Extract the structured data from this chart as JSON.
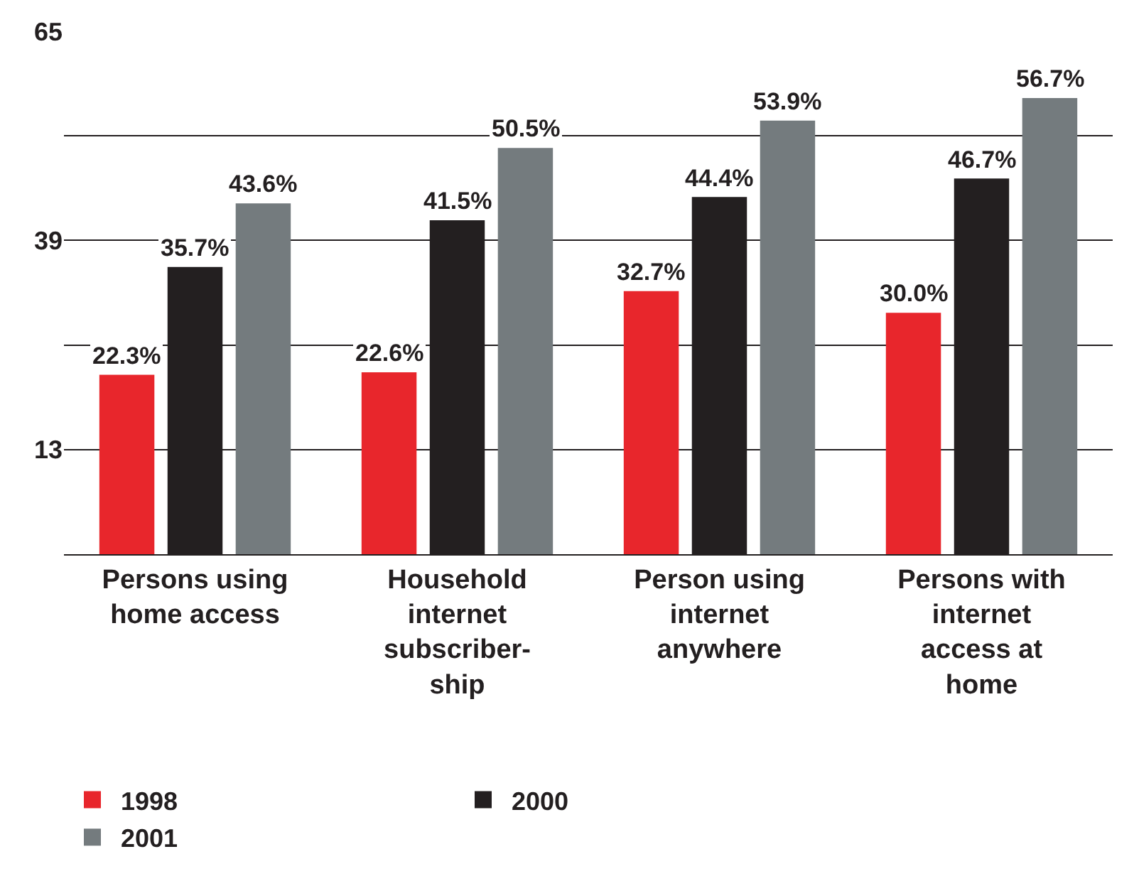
{
  "chart_data": {
    "type": "bar",
    "categories": [
      "Persons using\nhome access",
      "Household\ninternet\nsubscriber-\nship",
      "Person using\ninternet\nanywhere",
      "Persons with\ninternet\naccess at\nhome"
    ],
    "series": [
      {
        "name": "1998",
        "color": "#e8262c",
        "values": [
          22.3,
          22.6,
          32.7,
          30.0
        ],
        "value_labels": [
          "22.3%",
          "22.6%",
          "32.7%",
          "30.0%"
        ]
      },
      {
        "name": "2000",
        "color": "#231f20",
        "values": [
          35.7,
          41.5,
          44.4,
          46.7
        ],
        "value_labels": [
          "35.7%",
          "41.5%",
          "44.4%",
          "46.7%"
        ]
      },
      {
        "name": "2001",
        "color": "#747b7e",
        "values": [
          43.6,
          50.5,
          53.9,
          56.7
        ],
        "value_labels": [
          "43.6%",
          "50.5%",
          "53.9%",
          "56.7%"
        ]
      }
    ],
    "ylim": [
      0,
      65
    ],
    "yticks": [
      {
        "value": 0,
        "label": null
      },
      13,
      {
        "value": 26,
        "label": null
      },
      39,
      {
        "value": 52,
        "label": null
      },
      65
    ],
    "grid": "y",
    "legend": "bottom"
  }
}
